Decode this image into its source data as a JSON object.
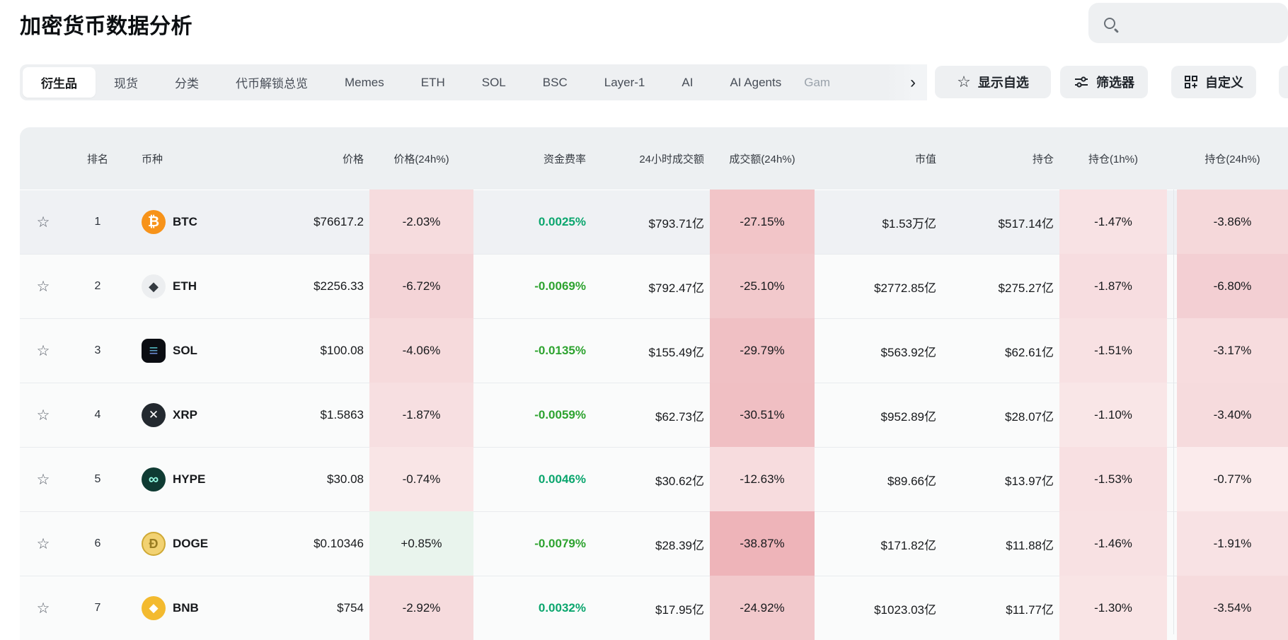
{
  "page": {
    "title": "加密货币数据分析"
  },
  "search": {
    "placeholder": ""
  },
  "tabs": {
    "items": [
      {
        "label": "衍生品",
        "active": true
      },
      {
        "label": "现货",
        "active": false
      },
      {
        "label": "分类",
        "active": false
      },
      {
        "label": "代币解锁总览",
        "active": false
      },
      {
        "label": "Memes",
        "active": false
      },
      {
        "label": "ETH",
        "active": false
      },
      {
        "label": "SOL",
        "active": false
      },
      {
        "label": "BSC",
        "active": false
      },
      {
        "label": "Layer-1",
        "active": false
      },
      {
        "label": "AI",
        "active": false
      },
      {
        "label": "AI Agents",
        "active": false
      }
    ],
    "overflow_label": "Gam",
    "chevron": "›"
  },
  "actions": {
    "favorites": {
      "label": "显示自选",
      "icon": "star-icon"
    },
    "filter": {
      "label": "筛选器",
      "icon": "filter-sliders-icon"
    },
    "customize": {
      "label": "自定义",
      "icon": "customize-grid-icon"
    }
  },
  "table": {
    "columns": [
      "排名",
      "币种",
      "价格",
      "价格(24h%)",
      "资金费率",
      "24小时成交额",
      "成交额(24h%)",
      "市值",
      "持仓",
      "持仓(1h%)",
      "持仓(24h%)"
    ],
    "star_glyph": "☆",
    "colors": {
      "funding_positive": "#0ba66e",
      "funding_negative": "#2da32f",
      "row_hover_bg": "#eff1f4",
      "row_bg": "#fafbfb"
    },
    "rows": [
      {
        "rank": "1",
        "symbol": "BTC",
        "price": "$76617.2",
        "price_24h": "-2.03%",
        "price_24h_bg": "#f6dcde",
        "funding": "0.0025%",
        "funding_positive": true,
        "volume": "$793.71亿",
        "volume_24h": "-27.15%",
        "volume_24h_bg": "#f2c5c8",
        "mcap": "$1.53万亿",
        "oi": "$517.14亿",
        "oi_1h": "-1.47%",
        "oi_1h_bg": "#f8e2e4",
        "oi_24h": "-3.86%",
        "oi_24h_bg": "#f5d8da",
        "hovered": true,
        "icon": {
          "name": "btc-icon",
          "shape": "circle",
          "bg": "#f7931a",
          "glyph": "₿",
          "color": "#ffffff",
          "size": 20
        }
      },
      {
        "rank": "2",
        "symbol": "ETH",
        "price": "$2256.33",
        "price_24h": "-6.72%",
        "price_24h_bg": "#f4d4d7",
        "funding": "-0.0069%",
        "funding_positive": false,
        "volume": "$792.47亿",
        "volume_24h": "-25.10%",
        "volume_24h_bg": "#f2c9cc",
        "mcap": "$2772.85亿",
        "oi": "$275.27亿",
        "oi_1h": "-1.87%",
        "oi_1h_bg": "#f7dde0",
        "oi_24h": "-6.80%",
        "oi_24h_bg": "#f3cfd3",
        "hovered": false,
        "icon": {
          "name": "eth-icon",
          "shape": "circle",
          "bg": "#eceef0",
          "glyph": "◆",
          "color": "#343a40",
          "size": 18
        }
      },
      {
        "rank": "3",
        "symbol": "SOL",
        "price": "$100.08",
        "price_24h": "-4.06%",
        "price_24h_bg": "#f6dadc",
        "funding": "-0.0135%",
        "funding_positive": false,
        "volume": "$155.49亿",
        "volume_24h": "-29.79%",
        "volume_24h_bg": "#f0c0c4",
        "mcap": "$563.92亿",
        "oi": "$62.61亿",
        "oi_1h": "-1.51%",
        "oi_1h_bg": "#f8e1e3",
        "oi_24h": "-3.17%",
        "oi_24h_bg": "#f7dcde",
        "hovered": false,
        "icon": {
          "name": "sol-icon",
          "shape": "square",
          "bg": "#0b0d12",
          "glyph": "≡",
          "color": "#2ee5a9",
          "gradient": [
            "#32e3a0",
            "#8d5cf6"
          ],
          "size": 22
        }
      },
      {
        "rank": "4",
        "symbol": "XRP",
        "price": "$1.5863",
        "price_24h": "-1.87%",
        "price_24h_bg": "#f7dfe1",
        "funding": "-0.0059%",
        "funding_positive": false,
        "volume": "$62.73亿",
        "volume_24h": "-30.51%",
        "volume_24h_bg": "#f0bfc3",
        "mcap": "$952.89亿",
        "oi": "$28.07亿",
        "oi_1h": "-1.10%",
        "oi_1h_bg": "#f9e6e7",
        "oi_24h": "-3.40%",
        "oi_24h_bg": "#f6dbdd",
        "hovered": false,
        "icon": {
          "name": "xrp-icon",
          "shape": "circle",
          "bg": "#23292f",
          "glyph": "✕",
          "color": "#ffffff",
          "size": 17
        }
      },
      {
        "rank": "5",
        "symbol": "HYPE",
        "price": "$30.08",
        "price_24h": "-0.74%",
        "price_24h_bg": "#f9e5e6",
        "funding": "0.0046%",
        "funding_positive": true,
        "volume": "$30.62亿",
        "volume_24h": "-12.63%",
        "volume_24h_bg": "#f7dcde",
        "mcap": "$89.66亿",
        "oi": "$13.97亿",
        "oi_1h": "-1.53%",
        "oi_1h_bg": "#f8e0e2",
        "oi_24h": "-0.77%",
        "oi_24h_bg": "#fbebec",
        "hovered": false,
        "icon": {
          "name": "hype-icon",
          "shape": "circle",
          "bg": "#0f3b33",
          "glyph": "∞",
          "color": "#96fce4",
          "size": 20
        }
      },
      {
        "rank": "6",
        "symbol": "DOGE",
        "price": "$0.10346",
        "price_24h": "+0.85%",
        "price_24h_bg": "#e9f4ed",
        "funding": "-0.0079%",
        "funding_positive": false,
        "volume": "$28.39亿",
        "volume_24h": "-38.87%",
        "volume_24h_bg": "#eeb4b9",
        "mcap": "$171.82亿",
        "oi": "$11.88亿",
        "oi_1h": "-1.46%",
        "oi_1h_bg": "#f8e1e3",
        "oi_24h": "-1.91%",
        "oi_24h_bg": "#f8e2e4",
        "hovered": false,
        "icon": {
          "name": "doge-icon",
          "shape": "circle",
          "bg": "#f2d272",
          "glyph": "Ð",
          "color": "#9a7d22",
          "border": "#cfa935",
          "size": 18
        }
      },
      {
        "rank": "7",
        "symbol": "BNB",
        "price": "$754",
        "price_24h": "-2.92%",
        "price_24h_bg": "#f6dbdd",
        "funding": "0.0032%",
        "funding_positive": true,
        "volume": "$17.95亿",
        "volume_24h": "-24.92%",
        "volume_24h_bg": "#f2c9cc",
        "mcap": "$1023.03亿",
        "oi": "$11.77亿",
        "oi_1h": "-1.30%",
        "oi_1h_bg": "#f9e4e5",
        "oi_24h": "-3.54%",
        "oi_24h_bg": "#f6dbdd",
        "hovered": false,
        "icon": {
          "name": "bnb-icon",
          "shape": "circle",
          "bg": "#f3ba2f",
          "glyph": "◆",
          "color": "#ffffff",
          "size": 17
        }
      }
    ]
  }
}
